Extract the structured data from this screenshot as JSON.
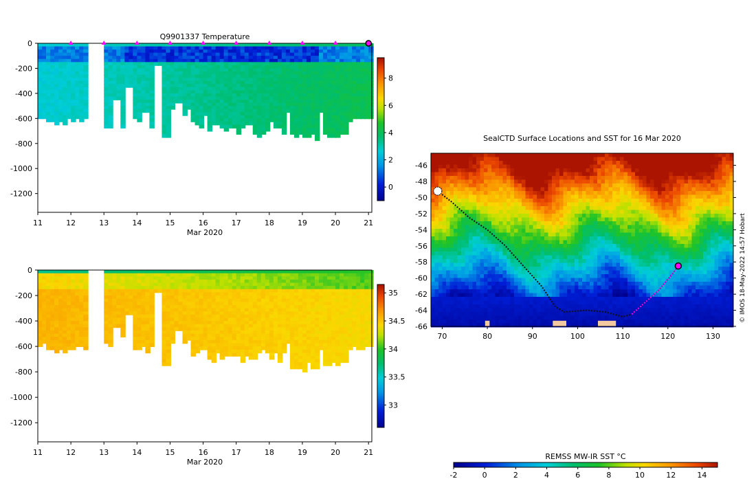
{
  "chart_data": [
    {
      "type": "heatmap",
      "title": "Q9901337  Temperature",
      "xlabel": "Mar 2020",
      "xlim": [
        11,
        21.1
      ],
      "ylim": [
        -1350,
        0
      ],
      "xticks": [
        "11",
        "12",
        "13",
        "14",
        "15",
        "16",
        "17",
        "18",
        "19",
        "20",
        "21"
      ],
      "yticks": [
        "0",
        "-200",
        "-400",
        "-600",
        "-800",
        "-1000",
        "-1200"
      ],
      "colorbar_range": [
        -1,
        9.5
      ],
      "colorbar_ticks": [
        "8",
        "6",
        "4",
        "2",
        "0"
      ],
      "profile_markers_days": [
        12,
        13,
        14,
        15,
        16,
        17,
        18,
        19,
        20
      ],
      "latest_profile_day": 21
    },
    {
      "type": "heatmap",
      "title": "",
      "xlabel": "Mar 2020",
      "xlim": [
        11,
        21.1
      ],
      "ylim": [
        -1350,
        0
      ],
      "xticks": [
        "11",
        "12",
        "13",
        "14",
        "15",
        "16",
        "17",
        "18",
        "19",
        "20",
        "21"
      ],
      "yticks": [
        "0",
        "-200",
        "-400",
        "-600",
        "-800",
        "-1000",
        "-1200"
      ],
      "colorbar_range": [
        32.6,
        35.15
      ],
      "colorbar_ticks": [
        "35",
        "34.5",
        "34",
        "33.5",
        "33"
      ]
    },
    {
      "type": "heatmap",
      "title": "SealCTD Surface Locations and SST for 16 Mar 2020",
      "xlim": [
        67.5,
        134.5
      ],
      "ylim": [
        -66,
        -44.5
      ],
      "xticks": [
        "70",
        "80",
        "90",
        "100",
        "110",
        "120",
        "130"
      ],
      "yticks": [
        "-46",
        "-48",
        "-50",
        "-52",
        "-54",
        "-56",
        "-58",
        "-60",
        "-62",
        "-64",
        "-66"
      ],
      "colorbar_label": "REMSS MW-IR SST °C",
      "colorbar_range": [
        -2,
        15
      ],
      "colorbar_ticks": [
        "-2",
        "0",
        "2",
        "4",
        "6",
        "8",
        "10",
        "12",
        "14"
      ],
      "track": [
        [
          69,
          -49.2
        ],
        [
          72,
          -50.5
        ],
        [
          76,
          -52.5
        ],
        [
          80,
          -54
        ],
        [
          84,
          -56
        ],
        [
          88,
          -58.5
        ],
        [
          92,
          -61
        ],
        [
          95,
          -63.5
        ],
        [
          97,
          -64.2
        ],
        [
          102,
          -64
        ],
        [
          106,
          -64.2
        ],
        [
          110,
          -64.8
        ],
        [
          112,
          -64.5
        ],
        [
          115,
          -63
        ],
        [
          118,
          -61.5
        ],
        [
          121,
          -59.5
        ],
        [
          122.3,
          -58.5
        ]
      ],
      "latest_position": [
        122.3,
        -58.5
      ],
      "credit": "© IMOS 18-May-2022 14:57 Hobart"
    }
  ]
}
